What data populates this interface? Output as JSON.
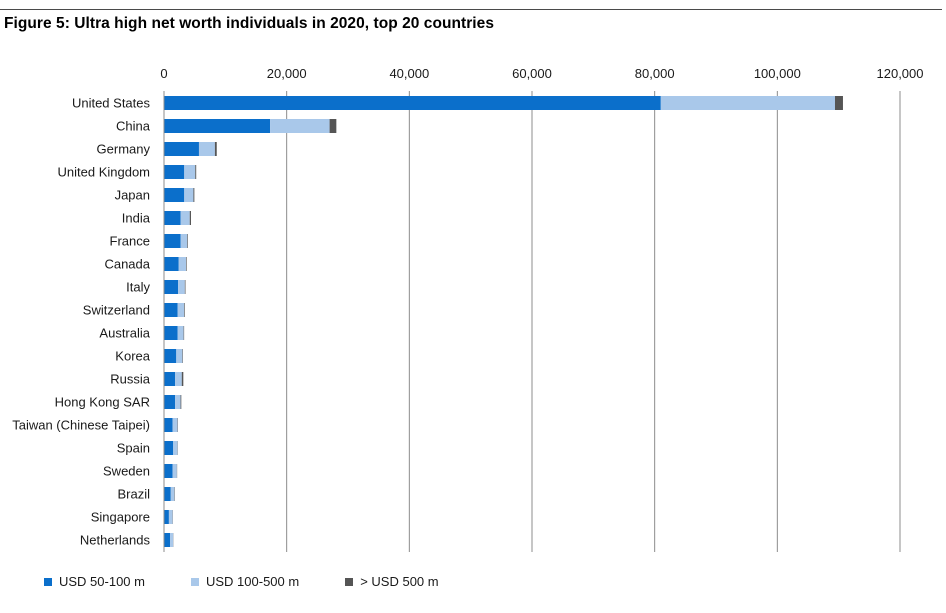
{
  "figure": {
    "title": "Figure 5: Ultra high net worth individuals in 2020, top 20 countries"
  },
  "chart_data": {
    "type": "bar",
    "orientation": "horizontal",
    "stacked": true,
    "categories": [
      "United States",
      "China",
      "Germany",
      "United Kingdom",
      "Japan",
      "India",
      "France",
      "Canada",
      "Italy",
      "Switzerland",
      "Australia",
      "Korea",
      "Russia",
      "Hong Kong SAR",
      "Taiwan (Chinese Taipei)",
      "Spain",
      "Sweden",
      "Brazil",
      "Singapore",
      "Netherlands"
    ],
    "series": [
      {
        "name": "USD 50-100 m",
        "color": "#0b6fcb",
        "values": [
          81000,
          17300,
          5700,
          3300,
          3300,
          2700,
          2700,
          2400,
          2300,
          2200,
          2200,
          2000,
          1800,
          1800,
          1400,
          1500,
          1400,
          1100,
          800,
          1000
        ]
      },
      {
        "name": "USD 100-500 m",
        "color": "#a9c8ea",
        "values": [
          28400,
          9700,
          2600,
          1800,
          1500,
          1500,
          1100,
          1200,
          1100,
          1100,
          1000,
          1000,
          1100,
          900,
          800,
          700,
          700,
          600,
          600,
          500
        ]
      },
      {
        "name": "> USD 500 m",
        "color": "#555555",
        "values": [
          1300,
          1100,
          300,
          150,
          150,
          200,
          100,
          100,
          100,
          100,
          80,
          80,
          250,
          120,
          60,
          40,
          40,
          60,
          40,
          30
        ]
      }
    ],
    "xlim": [
      0,
      120000
    ],
    "xticks": [
      "0",
      "20,000",
      "40,000",
      "60,000",
      "80,000",
      "100,000",
      "120,000"
    ],
    "xtick_values": [
      0,
      20000,
      40000,
      60000,
      80000,
      100000,
      120000
    ],
    "grid": "vertical",
    "legend_position": "bottom-left"
  }
}
